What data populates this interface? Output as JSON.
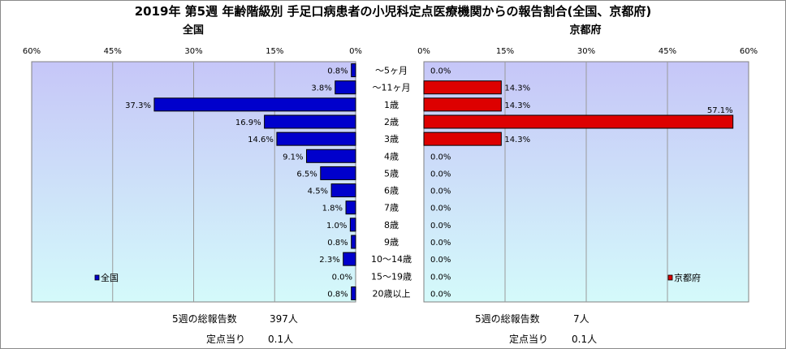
{
  "title": "2019年 第5週 年齢階級別 手足口病患者の小児科定点医療機関からの報告割合(全国、京都府)",
  "colors": {
    "national_bar": "#0000cc",
    "kyoto_bar": "#dd0000",
    "plot_bg_top": "#c6c6f8",
    "plot_bg_bottom": "#d4fafa"
  },
  "chart_data": [
    {
      "type": "bar",
      "orientation": "horizontal",
      "direction": "right-to-left",
      "title": "全国",
      "categories": [
        "～5ヶ月",
        "～11ヶ月",
        "1歳",
        "2歳",
        "3歳",
        "4歳",
        "5歳",
        "6歳",
        "7歳",
        "8歳",
        "9歳",
        "10～14歳",
        "15～19歳",
        "20歳以上"
      ],
      "series": [
        {
          "name": "全国",
          "values": [
            0.8,
            3.8,
            37.3,
            16.9,
            14.6,
            9.1,
            6.5,
            4.5,
            1.8,
            1.0,
            0.8,
            2.3,
            0.0,
            0.8
          ],
          "labels": [
            "0.8%",
            "3.8%",
            "37.3%",
            "16.9%",
            "14.6%",
            "9.1%",
            "6.5%",
            "4.5%",
            "1.8%",
            "1.0%",
            "0.8%",
            "2.3%",
            "0.0%",
            "0.8%"
          ]
        }
      ],
      "xlim": [
        0,
        60
      ],
      "ticks": [
        "60%",
        "45%",
        "30%",
        "15%",
        "0%"
      ],
      "grid": true,
      "legend": "bottom-left"
    },
    {
      "type": "bar",
      "orientation": "horizontal",
      "direction": "left-to-right",
      "title": "京都府",
      "categories": [
        "～5ヶ月",
        "～11ヶ月",
        "1歳",
        "2歳",
        "3歳",
        "4歳",
        "5歳",
        "6歳",
        "7歳",
        "8歳",
        "9歳",
        "10～14歳",
        "15～19歳",
        "20歳以上"
      ],
      "series": [
        {
          "name": "京都府",
          "values": [
            0.0,
            14.3,
            14.3,
            57.1,
            14.3,
            0.0,
            0.0,
            0.0,
            0.0,
            0.0,
            0.0,
            0.0,
            0.0,
            0.0
          ],
          "labels": [
            "0.0%",
            "14.3%",
            "14.3%",
            "57.1%",
            "14.3%",
            "0.0%",
            "0.0%",
            "0.0%",
            "0.0%",
            "0.0%",
            "0.0%",
            "0.0%",
            "0.0%",
            "0.0%"
          ]
        }
      ],
      "xlim": [
        0,
        60
      ],
      "ticks": [
        "0%",
        "15%",
        "30%",
        "45%",
        "60%"
      ],
      "grid": true,
      "legend": "bottom-right"
    }
  ],
  "footer": {
    "national": {
      "total_label": "5週の総報告数",
      "total_value": "397人",
      "per_label": "定点当り",
      "per_value": "0.1人"
    },
    "kyoto": {
      "total_label": "5週の総報告数",
      "total_value": "7人",
      "per_label": "定点当り",
      "per_value": "0.1人"
    }
  }
}
